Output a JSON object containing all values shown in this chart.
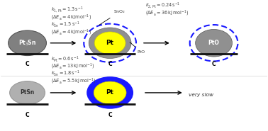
{
  "bg_color": "#ffffff",
  "carbon_color": "#111111",
  "pt3sn_color": "#808080",
  "ptsn_color": "#b0b0b0",
  "pt_yellow": "#ffff00",
  "pt_gray_ring": "#909090",
  "pto_gray": "#909090",
  "blue_dashed": "#1a1aff",
  "blue_solid": "#1a1aff",
  "top_text1": "$k_{1,\\,\\mathrm{Pt}} = 1.3\\,\\mathrm{s}^{-1}$",
  "top_text2": "$(\\Delta E_\\mathrm{a} = 4\\,\\mathrm{kJ\\,mol}^{-1})$",
  "top_text3": "$k_{\\mathrm{Sn}} = 1.5\\,\\mathrm{s}^{-1}$",
  "top_text4": "$(\\Delta E_\\mathrm{a} = 4\\,\\mathrm{kJ\\,mol}^{-1})$",
  "top_text5": "$k_{2,\\,\\mathrm{Pt}} = 0.24\\,\\mathrm{s}^{-1}$",
  "top_text6": "$(\\Delta E_\\mathrm{a} = 36\\,\\mathrm{kJ\\,mol}^{-1})$",
  "bot_text1": "$k_{\\mathrm{Pt}} = 0.6\\,\\mathrm{s}^{-1}$",
  "bot_text2": "$(\\Delta E_\\mathrm{a} = 13\\,\\mathrm{kJ\\,mol}^{-1})$",
  "bot_text3": "$k_{\\mathrm{Sn}} = 1.8\\,\\mathrm{s}^{-1}$",
  "bot_text4": "$(\\Delta E_\\mathrm{a} = 5.5\\,\\mathrm{kJ\\,mol}^{-1})$"
}
